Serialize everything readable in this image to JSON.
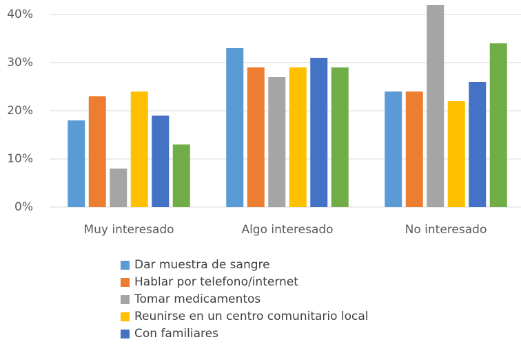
{
  "chart_data": {
    "type": "bar",
    "categories": [
      "Muy interesado",
      "Algo interesado",
      "No interesado"
    ],
    "series": [
      {
        "name": "Dar muestra de sangre",
        "color": "#5b9bd5",
        "values": [
          18,
          33,
          24
        ]
      },
      {
        "name": "Hablar por telefono/internet",
        "color": "#ed7d31",
        "values": [
          23,
          29,
          24
        ]
      },
      {
        "name": "Tomar medicamentos",
        "color": "#a5a5a5",
        "values": [
          8,
          27,
          42
        ]
      },
      {
        "name": "Reunirse en un centro comunitario local",
        "color": "#ffc000",
        "values": [
          24,
          29,
          22
        ]
      },
      {
        "name": "Con familiares",
        "color": "#4472c4",
        "values": [
          19,
          31,
          26
        ]
      },
      {
        "color": "#70ad47",
        "values": [
          13,
          29,
          34
        ]
      }
    ],
    "ylim": [
      0,
      43
    ],
    "yticks": [
      {
        "value": 0,
        "label": "0%"
      },
      {
        "value": 10,
        "label": "10%"
      },
      {
        "value": 20,
        "label": "20%"
      },
      {
        "value": 30,
        "label": "30%"
      },
      {
        "value": 40,
        "label": "40%"
      }
    ],
    "grid": true
  }
}
